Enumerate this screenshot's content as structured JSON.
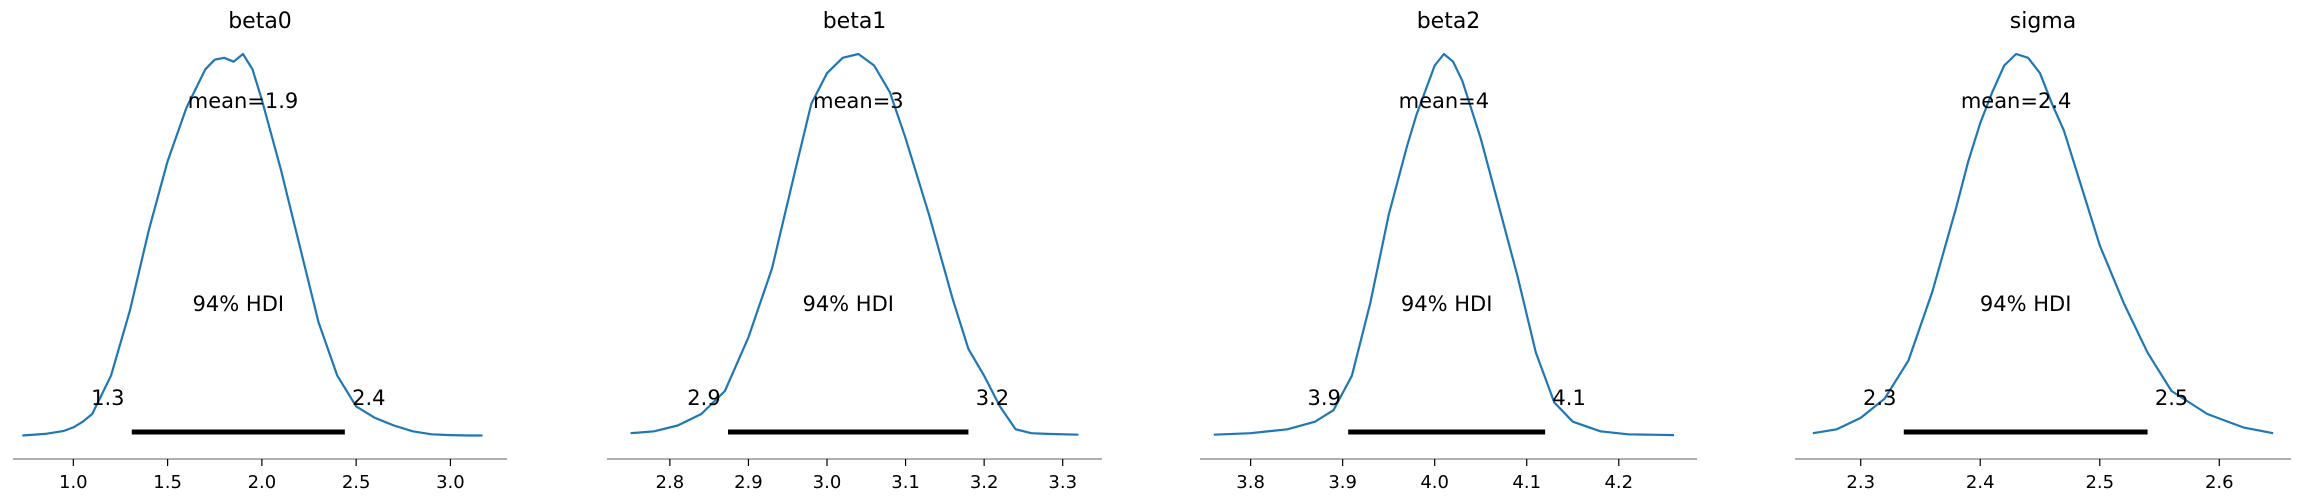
{
  "colors": {
    "curve": "#1f77b4",
    "hdi_bar": "#000000",
    "axis": "#808080",
    "text": "#000000"
  },
  "chart_data": [
    {
      "type": "line",
      "title": "beta0",
      "mean_label": "mean=1.9",
      "hdi_label": "94% HDI",
      "hdi": [
        1.3,
        2.4
      ],
      "hdi_bar": [
        1.31,
        2.44
      ],
      "hdi_low_label": "1.3",
      "hdi_high_label": "2.4",
      "xlim": [
        0.68,
        3.3
      ],
      "xticks": [
        1.0,
        1.5,
        2.0,
        2.5,
        3.0
      ],
      "xtick_labels": [
        "1.0",
        "1.5",
        "2.0",
        "2.5",
        "3.0"
      ],
      "density_x": [
        0.73,
        0.85,
        0.95,
        1.0,
        1.05,
        1.1,
        1.2,
        1.3,
        1.4,
        1.5,
        1.6,
        1.7,
        1.75,
        1.8,
        1.85,
        1.9,
        1.95,
        2.0,
        2.1,
        2.2,
        2.3,
        2.4,
        2.5,
        2.6,
        2.7,
        2.8,
        2.9,
        3.0,
        3.1,
        3.17
      ],
      "density_y": [
        0.004,
        0.008,
        0.016,
        0.025,
        0.04,
        0.06,
        0.16,
        0.33,
        0.54,
        0.72,
        0.86,
        0.96,
        0.985,
        0.99,
        0.98,
        1.0,
        0.96,
        0.88,
        0.7,
        0.5,
        0.3,
        0.16,
        0.08,
        0.05,
        0.03,
        0.015,
        0.007,
        0.005,
        0.004,
        0.004
      ]
    },
    {
      "type": "line",
      "title": "beta1",
      "mean_label": "mean=3",
      "hdi_label": "94% HDI",
      "hdi": [
        2.9,
        3.2
      ],
      "hdi_bar": [
        2.874,
        3.18
      ],
      "hdi_low_label": "2.9",
      "hdi_high_label": "3.2",
      "xlim": [
        2.72,
        3.35
      ],
      "xticks": [
        2.8,
        2.9,
        3.0,
        3.1,
        3.2,
        3.3
      ],
      "xtick_labels": [
        "2.8",
        "2.9",
        "3.0",
        "3.1",
        "3.2",
        "3.3"
      ],
      "density_x": [
        2.75,
        2.78,
        2.81,
        2.84,
        2.87,
        2.9,
        2.93,
        2.96,
        2.98,
        3.0,
        3.02,
        3.04,
        3.06,
        3.08,
        3.1,
        3.13,
        3.16,
        3.18,
        3.2,
        3.22,
        3.24,
        3.26,
        3.28,
        3.32
      ],
      "density_y": [
        0.01,
        0.015,
        0.03,
        0.06,
        0.12,
        0.26,
        0.44,
        0.7,
        0.87,
        0.95,
        0.99,
        1.0,
        0.97,
        0.9,
        0.78,
        0.58,
        0.36,
        0.23,
        0.16,
        0.08,
        0.02,
        0.01,
        0.008,
        0.006
      ]
    },
    {
      "type": "line",
      "title": "beta2",
      "mean_label": "mean=4",
      "hdi_label": "94% HDI",
      "hdi": [
        3.9,
        4.1
      ],
      "hdi_bar": [
        3.906,
        4.12
      ],
      "hdi_low_label": "3.9",
      "hdi_high_label": "4.1",
      "xlim": [
        3.745,
        4.285
      ],
      "xticks": [
        3.8,
        3.9,
        4.0,
        4.1,
        4.2
      ],
      "xtick_labels": [
        "3.8",
        "3.9",
        "4.0",
        "4.1",
        "4.2"
      ],
      "density_x": [
        3.76,
        3.8,
        3.84,
        3.87,
        3.89,
        3.91,
        3.93,
        3.95,
        3.97,
        3.98,
        4.0,
        4.01,
        4.02,
        4.03,
        4.05,
        4.07,
        4.09,
        4.11,
        4.13,
        4.15,
        4.18,
        4.21,
        4.26
      ],
      "density_y": [
        0.006,
        0.01,
        0.02,
        0.04,
        0.07,
        0.16,
        0.35,
        0.58,
        0.76,
        0.84,
        0.97,
        1.0,
        0.98,
        0.93,
        0.78,
        0.6,
        0.42,
        0.22,
        0.09,
        0.04,
        0.015,
        0.007,
        0.005
      ]
    },
    {
      "type": "line",
      "title": "sigma",
      "mean_label": "mean=2.4",
      "hdi_label": "94% HDI",
      "hdi": [
        2.3,
        2.5
      ],
      "hdi_bar": [
        2.336,
        2.54
      ],
      "hdi_low_label": "2.3",
      "hdi_high_label": "2.5",
      "xlim": [
        2.245,
        2.66
      ],
      "xticks": [
        2.3,
        2.4,
        2.5,
        2.6
      ],
      "xtick_labels": [
        "2.3",
        "2.4",
        "2.5",
        "2.6"
      ],
      "density_x": [
        2.26,
        2.28,
        2.3,
        2.32,
        2.34,
        2.36,
        2.38,
        2.39,
        2.4,
        2.41,
        2.42,
        2.43,
        2.44,
        2.45,
        2.46,
        2.47,
        2.48,
        2.5,
        2.52,
        2.54,
        2.56,
        2.59,
        2.62,
        2.645
      ],
      "density_y": [
        0.01,
        0.02,
        0.05,
        0.1,
        0.2,
        0.38,
        0.6,
        0.72,
        0.82,
        0.9,
        0.97,
        1.0,
        0.99,
        0.95,
        0.87,
        0.8,
        0.7,
        0.5,
        0.35,
        0.22,
        0.12,
        0.06,
        0.025,
        0.01
      ]
    }
  ]
}
